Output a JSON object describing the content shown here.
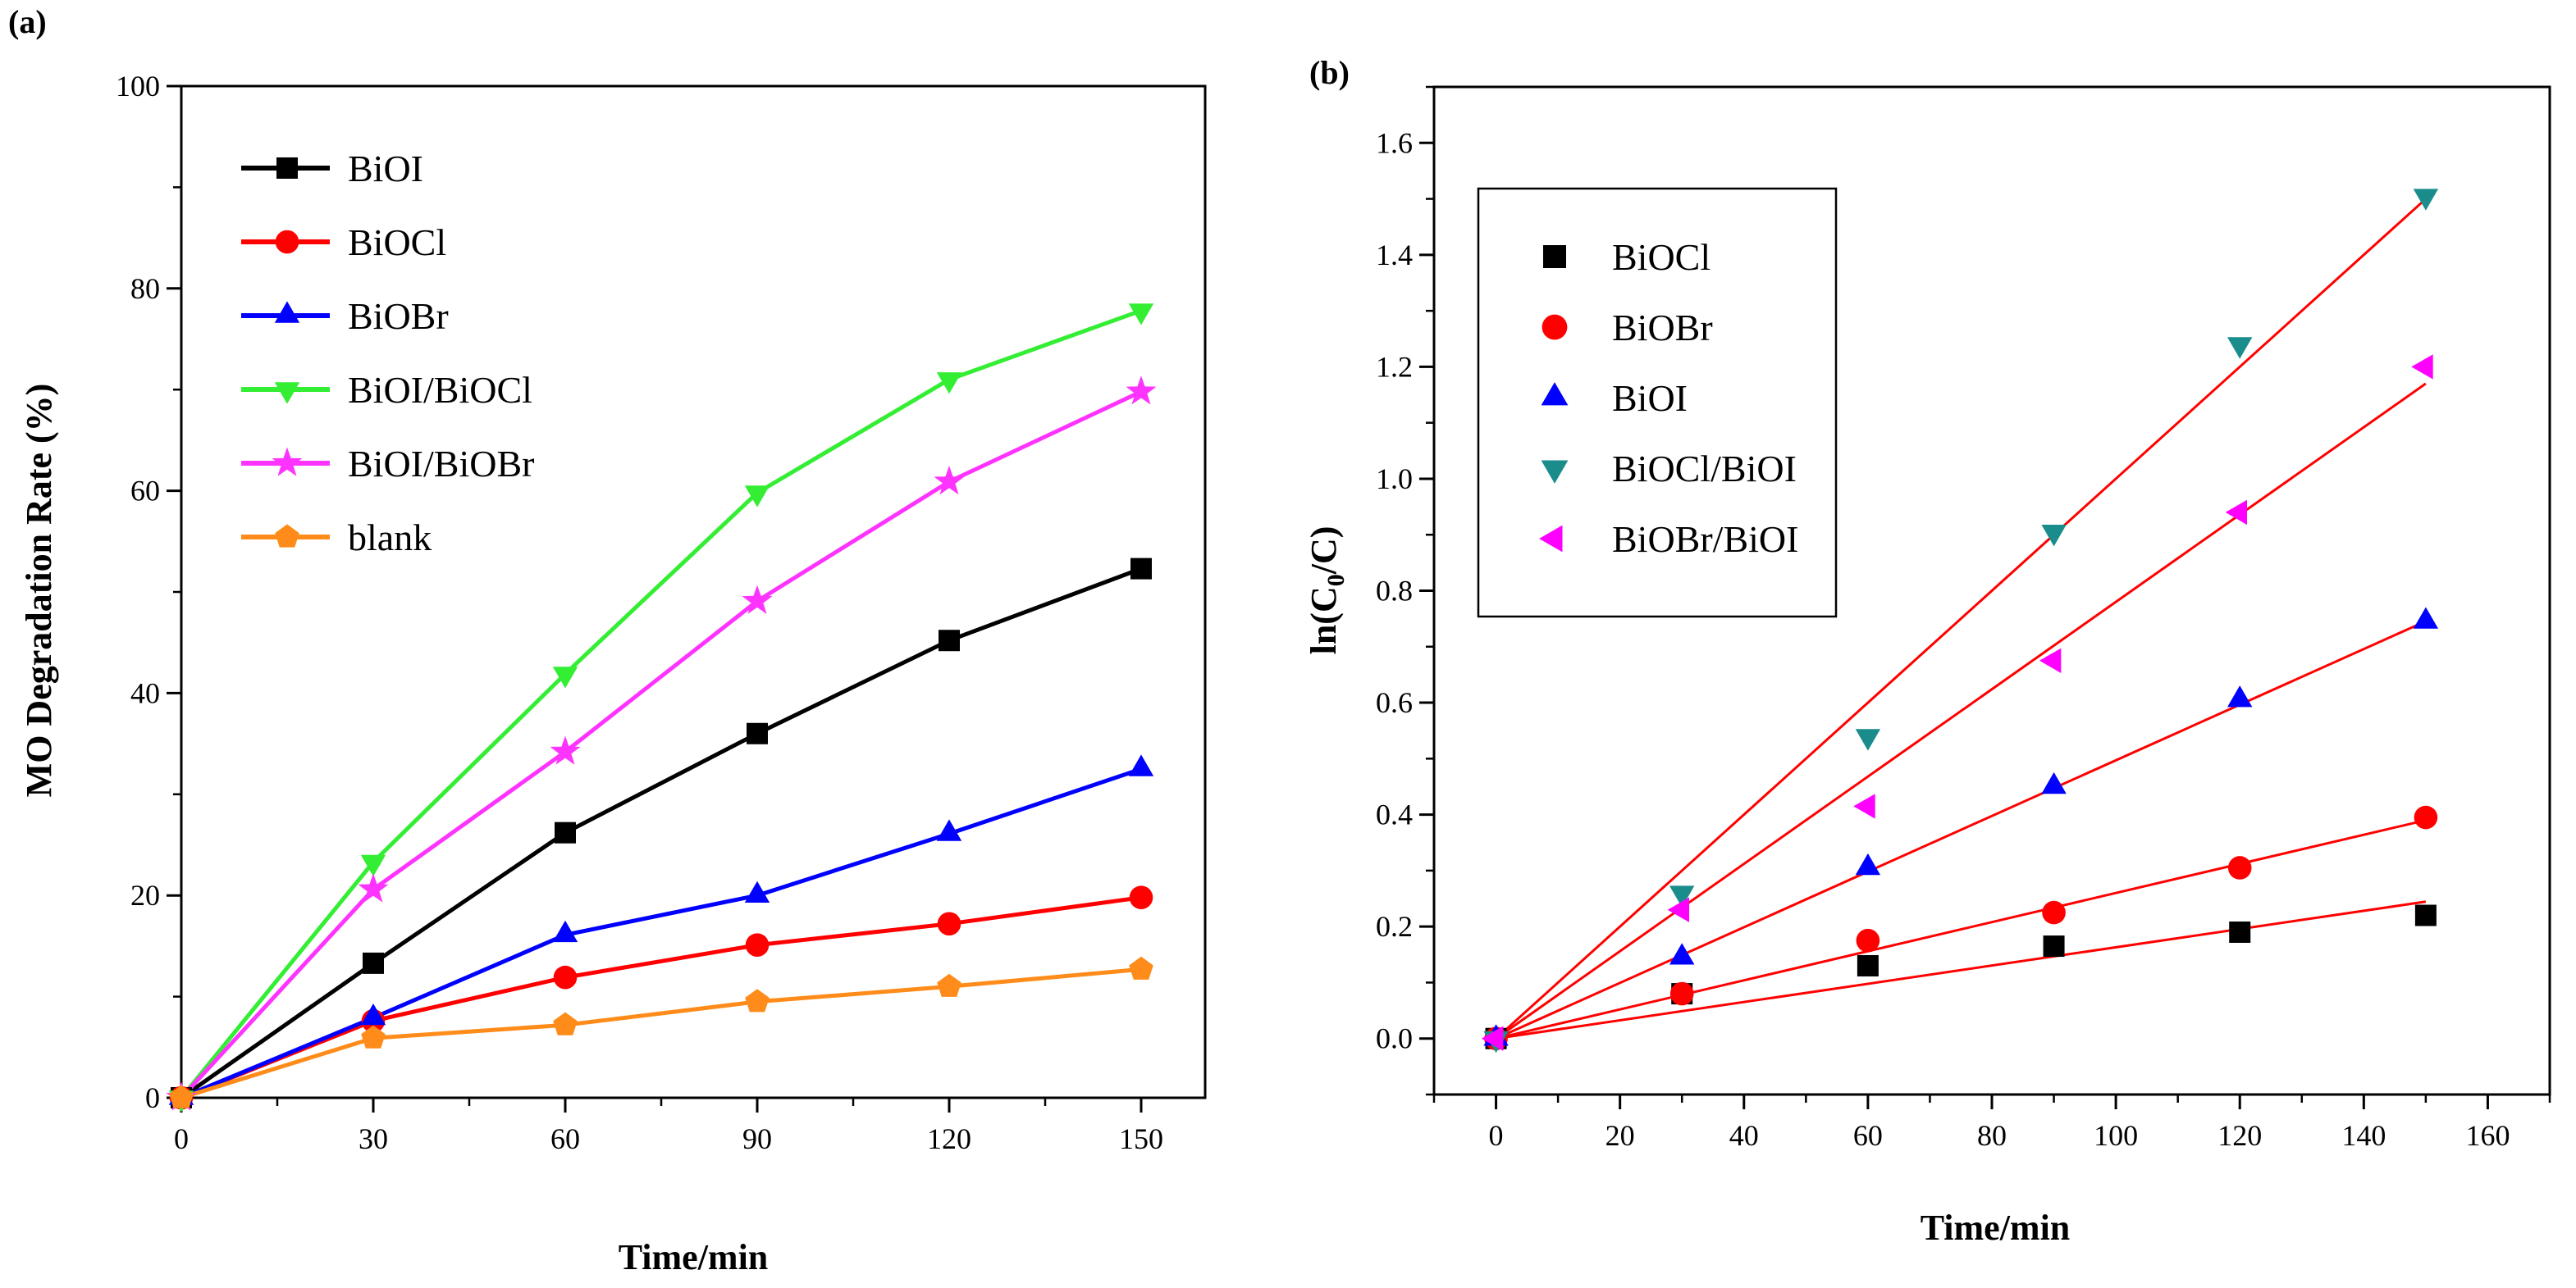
{
  "chart_data": [
    {
      "type": "line",
      "panel_label": "(a)",
      "xlabel": "Time/min",
      "ylabel": "MO Degradation Rate (%)",
      "xlim": [
        0,
        160
      ],
      "ylim": [
        0,
        100
      ],
      "x_ticks": [
        0,
        30,
        60,
        90,
        120,
        150
      ],
      "y_ticks": [
        0,
        20,
        40,
        60,
        80,
        100
      ],
      "legend_position": "top-left",
      "x": [
        0,
        30,
        60,
        90,
        120,
        150
      ],
      "series": [
        {
          "name": "BiOI",
          "color": "#000000",
          "marker": "square",
          "values": [
            0,
            13.3,
            26.2,
            36.0,
            45.2,
            52.3
          ]
        },
        {
          "name": "BiOCl",
          "color": "#ff0000",
          "marker": "circle",
          "values": [
            0,
            7.6,
            11.9,
            15.1,
            17.2,
            19.8
          ]
        },
        {
          "name": "BiOBr",
          "color": "#0000ff",
          "marker": "triangle-up",
          "values": [
            0,
            7.9,
            16.1,
            20.0,
            26.1,
            32.5
          ]
        },
        {
          "name": "BiOI/BiOCl",
          "color": "#33ee33",
          "marker": "triangle-down",
          "values": [
            0,
            23.3,
            41.9,
            59.8,
            71.0,
            77.8
          ]
        },
        {
          "name": "BiOI/BiOBr",
          "color": "#ff33ff",
          "marker": "star",
          "values": [
            0,
            20.6,
            34.2,
            49.1,
            60.9,
            69.8
          ]
        },
        {
          "name": "blank",
          "color": "#ff8c1a",
          "marker": "pentagon",
          "values": [
            0,
            5.9,
            7.2,
            9.5,
            11.0,
            12.7
          ]
        }
      ]
    },
    {
      "type": "scatter",
      "panel_label": "(b)",
      "xlabel": "Time/min",
      "ylabel_main": "ln(C",
      "ylabel_sub": "0",
      "ylabel_end": "/C)",
      "xlim": [
        -10,
        170
      ],
      "ylim": [
        -0.1,
        1.7
      ],
      "x_ticks": [
        0,
        20,
        40,
        60,
        80,
        100,
        120,
        140,
        160
      ],
      "y_ticks": [
        0.0,
        0.2,
        0.4,
        0.6,
        0.8,
        1.0,
        1.2,
        1.4,
        1.6
      ],
      "y_tick_labels": [
        "0.0",
        "0.2",
        "0.4",
        "0.6",
        "0.8",
        "1.0",
        "1.2",
        "1.4",
        "1.6"
      ],
      "legend_position": "top-left",
      "fit_line_color": "#ff0000",
      "x": [
        0,
        30,
        60,
        90,
        120,
        150
      ],
      "series": [
        {
          "name": "BiOCl",
          "color": "#000000",
          "marker": "square",
          "values": [
            0,
            0.08,
            0.13,
            0.165,
            0.19,
            0.22
          ],
          "fit_slope": 0.00163
        },
        {
          "name": "BiOBr",
          "color": "#ff0000",
          "marker": "circle",
          "values": [
            0,
            0.08,
            0.175,
            0.225,
            0.305,
            0.395
          ],
          "fit_slope": 0.0026
        },
        {
          "name": "BiOI",
          "color": "#0000ff",
          "marker": "triangle-up",
          "values": [
            0,
            0.145,
            0.305,
            0.45,
            0.605,
            0.745
          ],
          "fit_slope": 0.00497
        },
        {
          "name": "BiOCl/BiOI",
          "color": "#1a8c8c",
          "marker": "triangle-down",
          "values": [
            0,
            0.26,
            0.54,
            0.905,
            1.24,
            1.505
          ],
          "fit_slope": 0.01
        },
        {
          "name": "BiOBr/BiOI",
          "color": "#ff00ff",
          "marker": "triangle-left",
          "values": [
            0,
            0.23,
            0.415,
            0.675,
            0.94,
            1.2
          ],
          "fit_slope": 0.0078
        }
      ]
    }
  ]
}
